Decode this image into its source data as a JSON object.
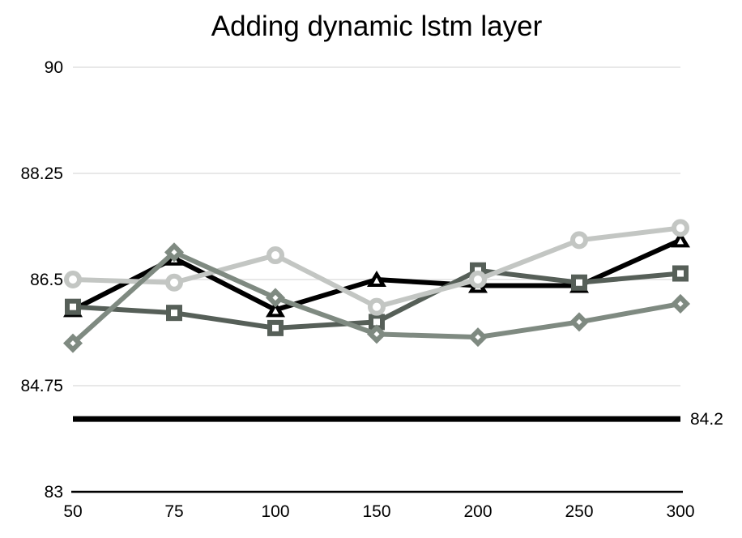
{
  "title": "Adding dynamic lstm layer",
  "colors": {
    "background": "#ffffff",
    "text": "#000000",
    "gridline": "#e0e0e0",
    "axis": "#000000"
  },
  "chart_data": {
    "type": "line",
    "title": "Adding dynamic lstm layer",
    "xlabel": "",
    "ylabel": "",
    "ylim": [
      83,
      90
    ],
    "grid": "horizontal",
    "legend": "none",
    "categories": [
      "50",
      "75",
      "100",
      "150",
      "200",
      "250",
      "300"
    ],
    "y_ticks": [
      "90",
      "88.25",
      "86.5",
      "84.75",
      "83"
    ],
    "y_tick_values": [
      90,
      88.25,
      86.5,
      84.75,
      83
    ],
    "series": [
      {
        "name": "black-triangle-series",
        "marker": "triangle",
        "color": "#000000",
        "values": [
          86.0,
          86.85,
          86.0,
          86.5,
          86.4,
          86.4,
          87.15
        ]
      },
      {
        "name": "dark-gray-square-series",
        "marker": "square",
        "color": "#565f58",
        "values": [
          86.05,
          85.95,
          85.7,
          85.8,
          86.65,
          86.45,
          86.6
        ]
      },
      {
        "name": "light-gray-circle-series",
        "marker": "circle",
        "color": "#c3c6c3",
        "values": [
          86.5,
          86.45,
          86.9,
          86.05,
          86.5,
          87.15,
          87.35
        ]
      },
      {
        "name": "gray-diamond-series",
        "marker": "diamond",
        "color": "#7f8a81",
        "values": [
          85.45,
          86.95,
          86.2,
          85.6,
          85.55,
          85.8,
          86.1
        ]
      }
    ],
    "reference_line": {
      "value": 84.2,
      "label": "84.2",
      "color": "#000000"
    }
  }
}
